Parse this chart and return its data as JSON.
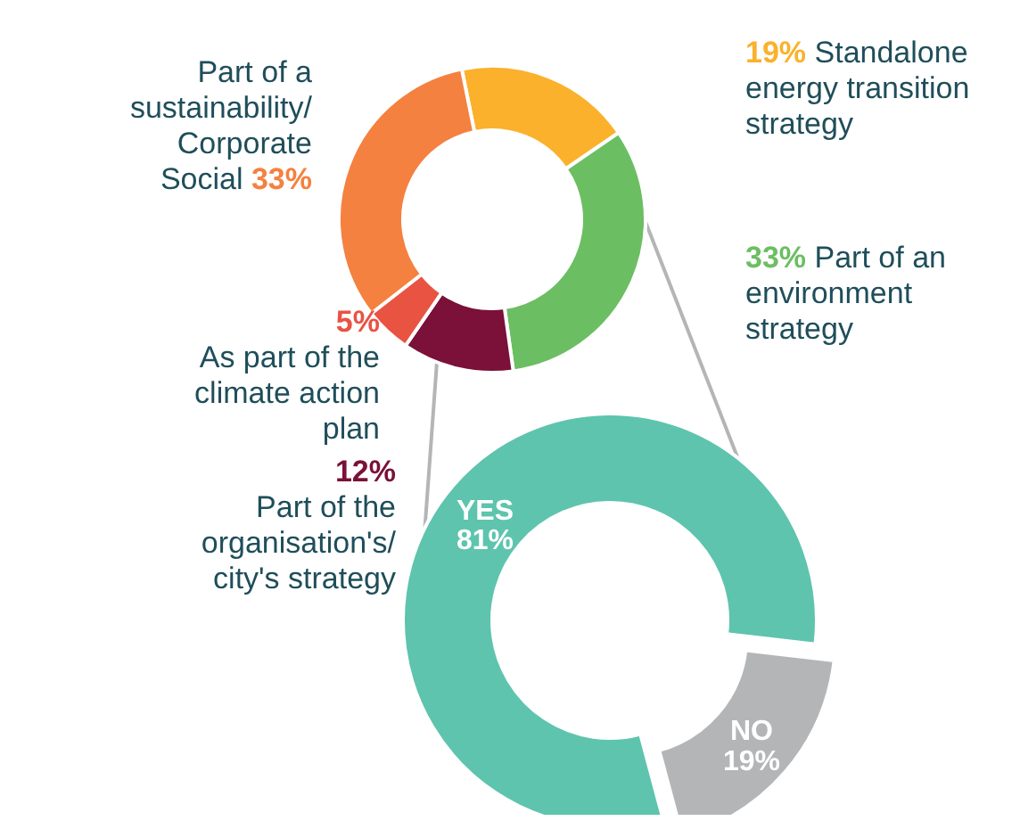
{
  "chart_data": [
    {
      "type": "donut",
      "categories": [
        "Standalone energy transition strategy",
        "Part of an environment strategy",
        "Part of the organisation's/ city's strategy",
        "As part of the climate action plan",
        "Part of a sustainability/ Corporate Social"
      ],
      "values": [
        19,
        33,
        12,
        5,
        33
      ],
      "colors": [
        "#fbb12b",
        "#6cbe62",
        "#7b1038",
        "#e95342",
        "#f4813f"
      ],
      "value_labels": [
        "19%",
        "33%",
        "12%",
        "5%",
        "33%"
      ]
    },
    {
      "type": "donut",
      "categories": [
        "YES",
        "NO"
      ],
      "values": [
        81,
        19
      ],
      "colors": [
        "#5ec4ad",
        "#b3b5b6"
      ],
      "value_labels": [
        "81%",
        "19%"
      ]
    }
  ]
}
